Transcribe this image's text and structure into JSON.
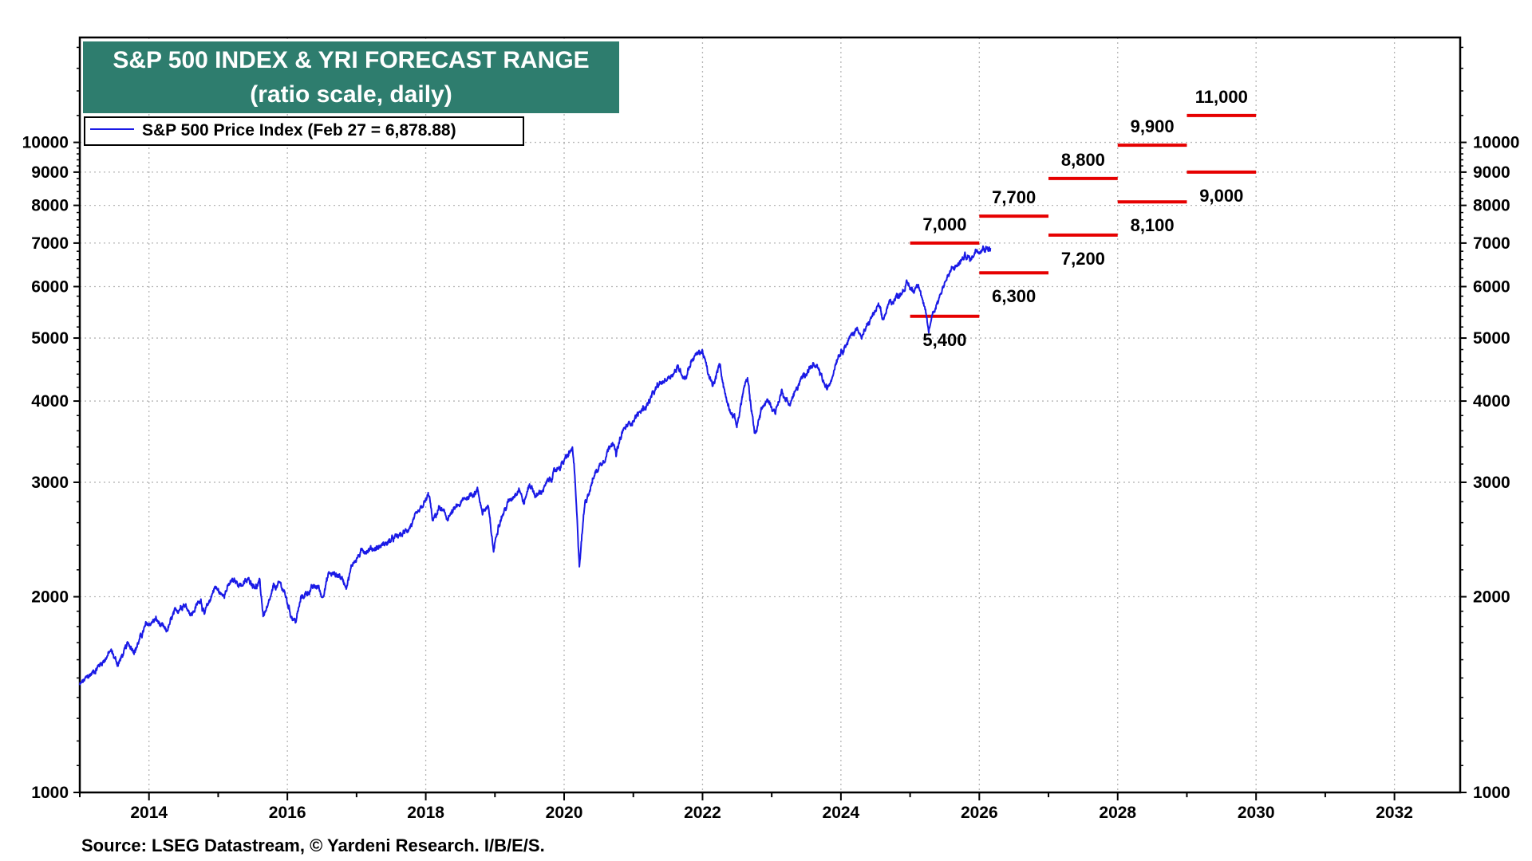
{
  "colors": {
    "series": "#1a1ae6",
    "forecast": "#e60000",
    "title_bg": "#2e7d6e",
    "title_text": "#ffffff",
    "grid": "#b5b5b5"
  },
  "chart_data": {
    "type": "line",
    "title": "S&P 500 INDEX & YRI FORECAST RANGE",
    "subtitle": "(ratio scale, daily)",
    "scale": "log",
    "legend": {
      "label": "S&P 500 Price Index (Feb 27 = 6,878.88)",
      "placement": "top-left"
    },
    "source": "Source: LSEG Datastream, © Yardeni Research. I/B/E/S.",
    "xlim": [
      2013.0,
      2032.95
    ],
    "ylim": [
      1000,
      14500
    ],
    "x_ticks": [
      {
        "value": 2014,
        "label": "2014"
      },
      {
        "value": 2016,
        "label": "2016"
      },
      {
        "value": 2018,
        "label": "2018"
      },
      {
        "value": 2020,
        "label": "2020"
      },
      {
        "value": 2022,
        "label": "2022"
      },
      {
        "value": 2024,
        "label": "2024"
      },
      {
        "value": 2026,
        "label": "2026"
      },
      {
        "value": 2028,
        "label": "2028"
      },
      {
        "value": 2030,
        "label": "2030"
      },
      {
        "value": 2032,
        "label": "2032"
      }
    ],
    "y_ticks": [
      {
        "value": 1000,
        "label": "1000"
      },
      {
        "value": 2000,
        "label": "2000"
      },
      {
        "value": 3000,
        "label": "3000"
      },
      {
        "value": 4000,
        "label": "4000"
      },
      {
        "value": 5000,
        "label": "5000"
      },
      {
        "value": 6000,
        "label": "6000"
      },
      {
        "value": 7000,
        "label": "7000"
      },
      {
        "value": 8000,
        "label": "8000"
      },
      {
        "value": 9000,
        "label": "9000"
      },
      {
        "value": 10000,
        "label": "10000"
      }
    ],
    "series": [
      {
        "name": "S&P 500 Price Index",
        "points": [
          [
            2013.0,
            1462
          ],
          [
            2013.15,
            1515
          ],
          [
            2013.35,
            1600
          ],
          [
            2013.45,
            1650
          ],
          [
            2013.55,
            1575
          ],
          [
            2013.7,
            1690
          ],
          [
            2013.8,
            1660
          ],
          [
            2013.95,
            1800
          ],
          [
            2014.1,
            1845
          ],
          [
            2014.25,
            1760
          ],
          [
            2014.35,
            1870
          ],
          [
            2014.5,
            1960
          ],
          [
            2014.62,
            1880
          ],
          [
            2014.75,
            1990
          ],
          [
            2014.8,
            1870
          ],
          [
            2014.95,
            2075
          ],
          [
            2015.05,
            2010
          ],
          [
            2015.2,
            2110
          ],
          [
            2015.35,
            2090
          ],
          [
            2015.45,
            2120
          ],
          [
            2015.55,
            2080
          ],
          [
            2015.6,
            2100
          ],
          [
            2015.65,
            1880
          ],
          [
            2015.72,
            1920
          ],
          [
            2015.8,
            2060
          ],
          [
            2015.9,
            2090
          ],
          [
            2015.95,
            2040
          ],
          [
            2016.05,
            1880
          ],
          [
            2016.12,
            1830
          ],
          [
            2016.2,
            1990
          ],
          [
            2016.35,
            2060
          ],
          [
            2016.45,
            2070
          ],
          [
            2016.5,
            2000
          ],
          [
            2016.6,
            2170
          ],
          [
            2016.75,
            2160
          ],
          [
            2016.85,
            2085
          ],
          [
            2016.95,
            2260
          ],
          [
            2017.1,
            2360
          ],
          [
            2017.3,
            2380
          ],
          [
            2017.5,
            2440
          ],
          [
            2017.7,
            2510
          ],
          [
            2017.9,
            2680
          ],
          [
            2018.05,
            2870
          ],
          [
            2018.1,
            2600
          ],
          [
            2018.2,
            2750
          ],
          [
            2018.3,
            2640
          ],
          [
            2018.45,
            2740
          ],
          [
            2018.6,
            2850
          ],
          [
            2018.75,
            2920
          ],
          [
            2018.82,
            2700
          ],
          [
            2018.9,
            2750
          ],
          [
            2018.98,
            2350
          ],
          [
            2019.05,
            2600
          ],
          [
            2019.2,
            2800
          ],
          [
            2019.35,
            2950
          ],
          [
            2019.42,
            2780
          ],
          [
            2019.5,
            2990
          ],
          [
            2019.6,
            2850
          ],
          [
            2019.75,
            2980
          ],
          [
            2019.9,
            3150
          ],
          [
            2020.0,
            3230
          ],
          [
            2020.12,
            3380
          ],
          [
            2020.15,
            3100
          ],
          [
            2020.22,
            2237
          ],
          [
            2020.3,
            2800
          ],
          [
            2020.45,
            3100
          ],
          [
            2020.6,
            3300
          ],
          [
            2020.7,
            3500
          ],
          [
            2020.75,
            3300
          ],
          [
            2020.85,
            3600
          ],
          [
            2021.0,
            3750
          ],
          [
            2021.1,
            3850
          ],
          [
            2021.2,
            3950
          ],
          [
            2021.35,
            4200
          ],
          [
            2021.5,
            4350
          ],
          [
            2021.65,
            4500
          ],
          [
            2021.75,
            4350
          ],
          [
            2021.85,
            4650
          ],
          [
            2021.95,
            4750
          ],
          [
            2022.0,
            4780
          ],
          [
            2022.08,
            4400
          ],
          [
            2022.15,
            4200
          ],
          [
            2022.25,
            4550
          ],
          [
            2022.35,
            4000
          ],
          [
            2022.45,
            3800
          ],
          [
            2022.5,
            3670
          ],
          [
            2022.6,
            4200
          ],
          [
            2022.65,
            4300
          ],
          [
            2022.75,
            3600
          ],
          [
            2022.78,
            3580
          ],
          [
            2022.85,
            3900
          ],
          [
            2022.95,
            4000
          ],
          [
            2023.05,
            3850
          ],
          [
            2023.15,
            4150
          ],
          [
            2023.25,
            3950
          ],
          [
            2023.35,
            4150
          ],
          [
            2023.5,
            4450
          ],
          [
            2023.6,
            4550
          ],
          [
            2023.7,
            4400
          ],
          [
            2023.8,
            4150
          ],
          [
            2023.85,
            4300
          ],
          [
            2023.95,
            4700
          ],
          [
            2024.1,
            4950
          ],
          [
            2024.25,
            5200
          ],
          [
            2024.3,
            5000
          ],
          [
            2024.45,
            5400
          ],
          [
            2024.55,
            5600
          ],
          [
            2024.6,
            5300
          ],
          [
            2024.7,
            5650
          ],
          [
            2024.85,
            5850
          ],
          [
            2024.95,
            6050
          ],
          [
            2025.05,
            5900
          ],
          [
            2025.12,
            6120
          ],
          [
            2025.2,
            5600
          ],
          [
            2025.27,
            5100
          ],
          [
            2025.32,
            5450
          ],
          [
            2025.4,
            5700
          ],
          [
            2025.5,
            6100
          ],
          [
            2025.6,
            6350
          ],
          [
            2025.7,
            6500
          ],
          [
            2025.8,
            6700
          ],
          [
            2025.88,
            6600
          ],
          [
            2025.95,
            6850
          ],
          [
            2026.05,
            6900
          ],
          [
            2026.16,
            6878.88
          ]
        ]
      }
    ],
    "forecast_ranges": [
      {
        "period": "2025",
        "low": 5400,
        "high": 7000,
        "low_label": "5,400",
        "high_label": "7,000",
        "x_start": 2025.0,
        "x_end": 2026.0
      },
      {
        "period": "2026",
        "low": 6300,
        "high": 7700,
        "low_label": "6,300",
        "high_label": "7,700",
        "x_start": 2026.0,
        "x_end": 2027.0
      },
      {
        "period": "2027",
        "low": 7200,
        "high": 8800,
        "low_label": "7,200",
        "high_label": "8,800",
        "x_start": 2027.0,
        "x_end": 2028.0
      },
      {
        "period": "2028",
        "low": 8100,
        "high": 9900,
        "low_label": "8,100",
        "high_label": "9,900",
        "x_start": 2028.0,
        "x_end": 2029.0
      },
      {
        "period": "2029",
        "low": 9000,
        "high": 11000,
        "low_label": "9,000",
        "high_label": "11,000",
        "x_start": 2029.0,
        "x_end": 2030.0
      }
    ]
  }
}
